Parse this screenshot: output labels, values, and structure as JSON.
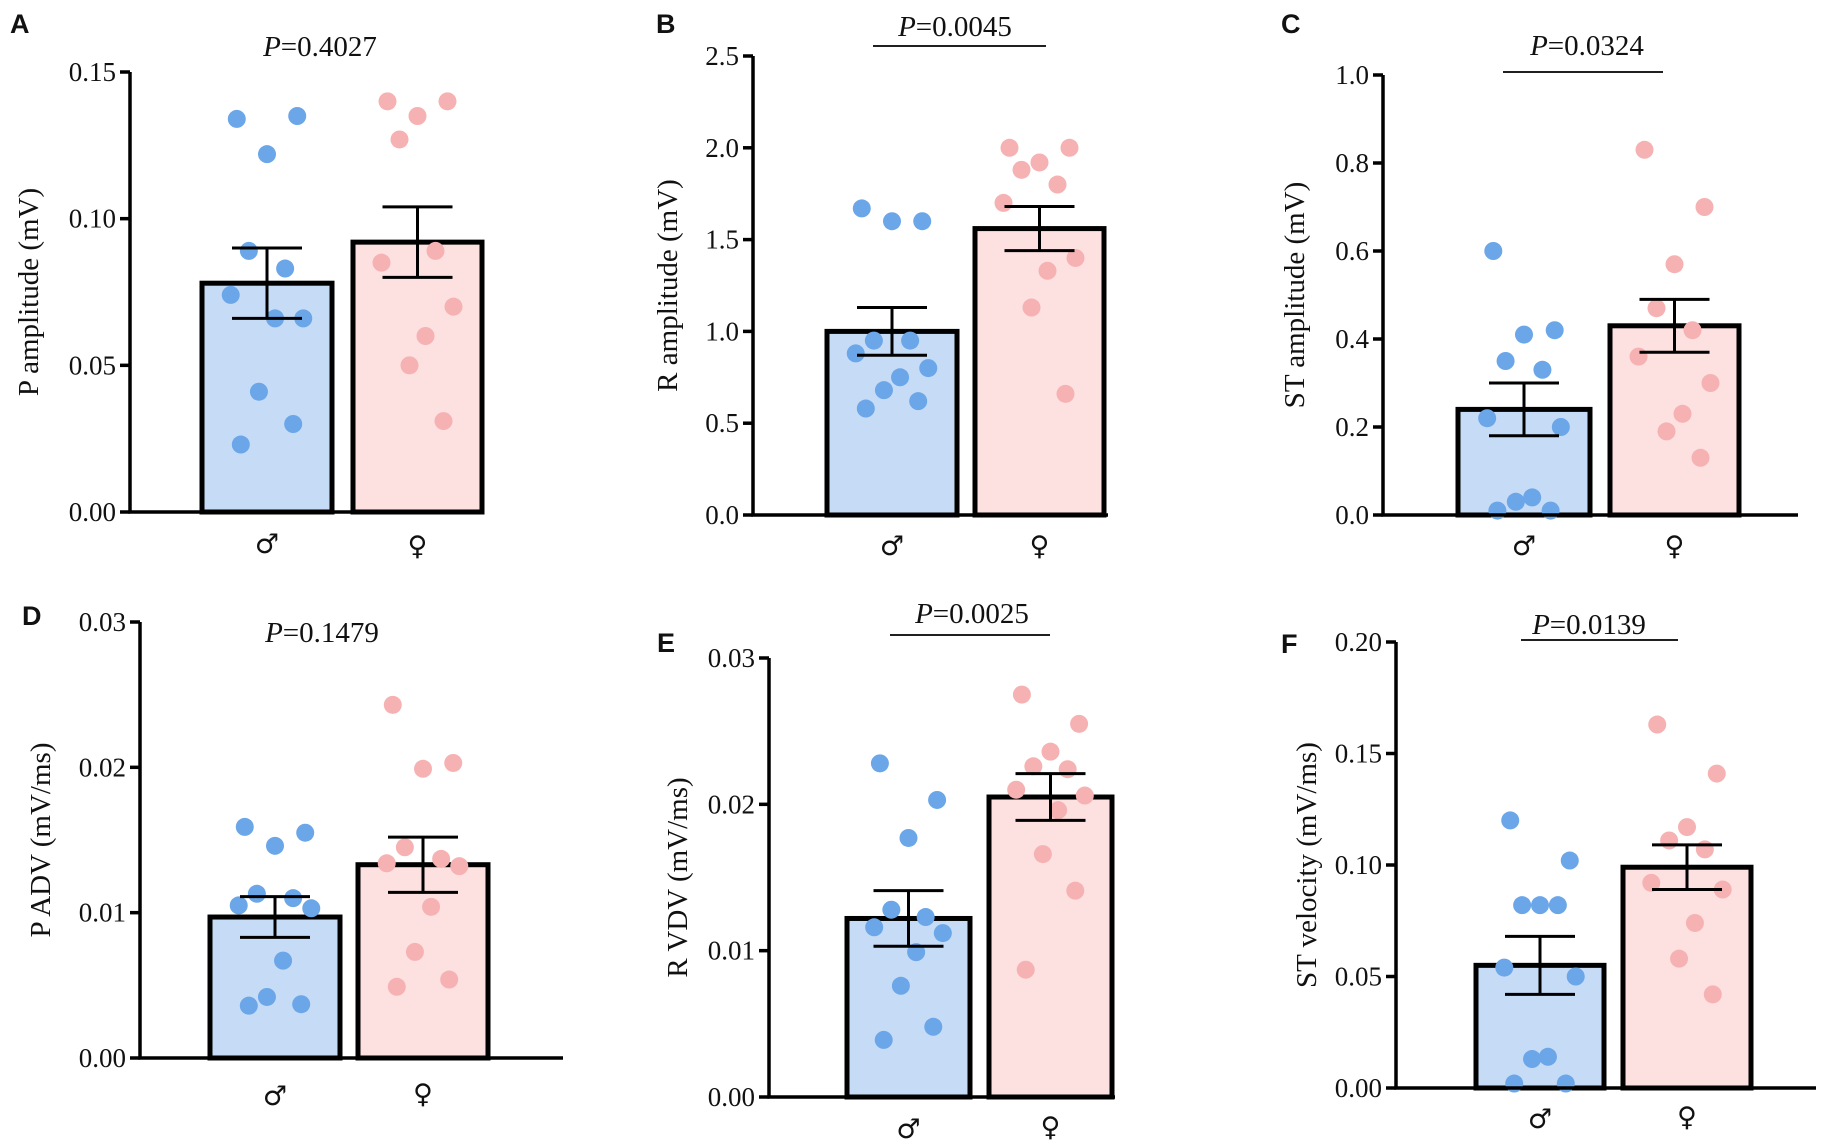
{
  "colors": {
    "male_bar": "#c6dbf6",
    "female_bar": "#fde0e0",
    "male_dot": "#6aa6e8",
    "female_dot": "#f6b2b3",
    "axis": "#000000"
  },
  "chart_data": [
    {
      "type": "bar",
      "panel": "A",
      "p_prefix": "P",
      "p_value": "=0.4027",
      "significance_line": false,
      "ylabel": "P amplitude (mV)",
      "ylim": [
        0,
        0.15
      ],
      "yticks": [
        0.0,
        0.05,
        0.1,
        0.15
      ],
      "ytick_labels": [
        "0.00",
        "0.05",
        "0.10",
        "0.15"
      ],
      "categories": [
        "♂",
        "♀"
      ],
      "values": [
        0.078,
        0.092
      ],
      "sem": [
        0.012,
        0.012
      ],
      "points": [
        [
          0.134,
          0.135,
          0.122,
          0.089,
          0.083,
          0.074,
          0.066,
          0.066,
          0.041,
          0.03,
          0.023
        ],
        [
          0.14,
          0.14,
          0.135,
          0.127,
          0.089,
          0.085,
          0.07,
          0.06,
          0.05,
          0.031
        ]
      ]
    },
    {
      "type": "bar",
      "panel": "B",
      "p_prefix": "P",
      "p_value": "=0.0045",
      "significance_line": true,
      "ylabel": "R amplitude (mV)",
      "ylim": [
        0,
        2.5
      ],
      "yticks": [
        0.0,
        0.5,
        1.0,
        1.5,
        2.0,
        2.5
      ],
      "ytick_labels": [
        "0.0",
        "0.5",
        "1.0",
        "1.5",
        "2.0",
        "2.5"
      ],
      "categories": [
        "♂",
        "♀"
      ],
      "values": [
        1.0,
        1.56
      ],
      "sem": [
        0.13,
        0.12
      ],
      "points": [
        [
          1.67,
          1.6,
          1.6,
          0.95,
          0.95,
          0.88,
          0.8,
          0.75,
          0.68,
          0.62,
          0.58
        ],
        [
          2.0,
          2.0,
          1.92,
          1.88,
          1.8,
          1.7,
          1.4,
          1.33,
          1.13,
          0.66
        ]
      ]
    },
    {
      "type": "bar",
      "panel": "C",
      "p_prefix": "P",
      "p_value": "=0.0324",
      "significance_line": true,
      "ylabel": "ST amplitude (mV)",
      "ylim": [
        0,
        1.0
      ],
      "yticks": [
        0.0,
        0.2,
        0.4,
        0.6,
        0.8,
        1.0
      ],
      "ytick_labels": [
        "0.0",
        "0.2",
        "0.4",
        "0.6",
        "0.8",
        "1.0"
      ],
      "categories": [
        "♂",
        "♀"
      ],
      "values": [
        0.24,
        0.43
      ],
      "sem": [
        0.06,
        0.06
      ],
      "points": [
        [
          0.6,
          0.42,
          0.41,
          0.35,
          0.33,
          0.22,
          0.2,
          0.04,
          0.03,
          0.01,
          0.01
        ],
        [
          0.83,
          0.7,
          0.57,
          0.47,
          0.42,
          0.36,
          0.3,
          0.23,
          0.19,
          0.13
        ]
      ]
    },
    {
      "type": "bar",
      "panel": "D",
      "p_prefix": "P",
      "p_value": "=0.1479",
      "significance_line": false,
      "ylabel": "P ADV (mV/ms)",
      "ylim": [
        0,
        0.03
      ],
      "yticks": [
        0.0,
        0.01,
        0.02,
        0.03
      ],
      "ytick_labels": [
        "0.00",
        "0.01",
        "0.02",
        "0.03"
      ],
      "categories": [
        "♂",
        "♀"
      ],
      "values": [
        0.0097,
        0.0133
      ],
      "sem": [
        0.0014,
        0.0019
      ],
      "points": [
        [
          0.0159,
          0.0155,
          0.0146,
          0.0113,
          0.011,
          0.0105,
          0.0103,
          0.0067,
          0.0042,
          0.0037,
          0.0036
        ],
        [
          0.0243,
          0.0203,
          0.0199,
          0.0145,
          0.0137,
          0.0134,
          0.0132,
          0.0104,
          0.0073,
          0.0054,
          0.0049
        ]
      ]
    },
    {
      "type": "bar",
      "panel": "E",
      "p_prefix": "P",
      "p_value": "=0.0025",
      "significance_line": true,
      "ylabel": "R VDV (mV/ms)",
      "ylim": [
        0,
        0.03
      ],
      "yticks": [
        0.0,
        0.01,
        0.02,
        0.03
      ],
      "ytick_labels": [
        "0.00",
        "0.01",
        "0.02",
        "0.03"
      ],
      "categories": [
        "♂",
        "♀"
      ],
      "values": [
        0.0122,
        0.0205
      ],
      "sem": [
        0.0019,
        0.0016
      ],
      "points": [
        [
          0.0228,
          0.0203,
          0.0177,
          0.0128,
          0.0123,
          0.0116,
          0.0112,
          0.0099,
          0.0076,
          0.0048,
          0.0039
        ],
        [
          0.0275,
          0.0255,
          0.0236,
          0.0226,
          0.0224,
          0.021,
          0.0206,
          0.0196,
          0.0166,
          0.0141,
          0.0087
        ]
      ]
    },
    {
      "type": "bar",
      "panel": "F",
      "p_prefix": "P",
      "p_value": "=0.0139",
      "significance_line": true,
      "ylabel": "ST velocity (mV/ms)",
      "ylim": [
        0,
        0.2
      ],
      "yticks": [
        0.0,
        0.05,
        0.1,
        0.15,
        0.2
      ],
      "ytick_labels": [
        "0.00",
        "0.05",
        "0.10",
        "0.15",
        "0.20"
      ],
      "categories": [
        "♂",
        "♀"
      ],
      "values": [
        0.055,
        0.099
      ],
      "sem": [
        0.013,
        0.01
      ],
      "points": [
        [
          0.12,
          0.102,
          0.082,
          0.082,
          0.082,
          0.054,
          0.05,
          0.014,
          0.013,
          0.002,
          0.002
        ],
        [
          0.163,
          0.141,
          0.117,
          0.111,
          0.107,
          0.092,
          0.089,
          0.074,
          0.058,
          0.042
        ]
      ]
    }
  ]
}
